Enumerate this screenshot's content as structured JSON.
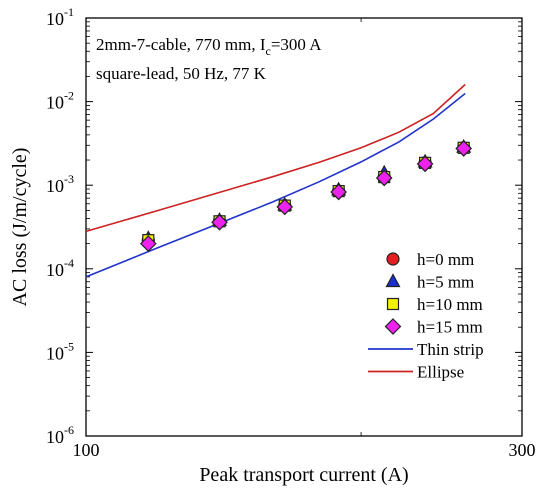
{
  "chart_data": {
    "type": "scatter",
    "annotation_line1": "2mm-7-cable, 770 mm, I",
    "annotation_line1_sub": "c",
    "annotation_line1_tail": "=300 A",
    "annotation_line2": "square-lead, 50 Hz, 77 K",
    "xlabel": "Peak transport current (A)",
    "ylabel": "AC loss (J/m/cycle)",
    "x_scale": "log",
    "y_scale": "log",
    "xlim": [
      100,
      300
    ],
    "ylim": [
      1e-06,
      0.1
    ],
    "x_ticks": [
      {
        "value": 100,
        "label": "100"
      },
      {
        "value": 300,
        "label": "300"
      }
    ],
    "y_ticks": [
      {
        "value": 1e-06,
        "base": "10",
        "exp": "-6"
      },
      {
        "value": 1e-05,
        "base": "10",
        "exp": "-5"
      },
      {
        "value": 0.0001,
        "base": "10",
        "exp": "-4"
      },
      {
        "value": 0.001,
        "base": "10",
        "exp": "-3"
      },
      {
        "value": 0.01,
        "base": "10",
        "exp": "-2"
      },
      {
        "value": 0.1,
        "base": "10",
        "exp": "-1"
      }
    ],
    "legend_position": "bottom-right",
    "series": [
      {
        "name": "h=0 mm",
        "kind": "marker",
        "marker": "circle",
        "color": "#e02020",
        "x": [
          117,
          140,
          165,
          189,
          212,
          235,
          259
        ],
        "y": [
          0.00022,
          0.00037,
          0.00057,
          0.00085,
          0.00125,
          0.00185,
          0.0028
        ]
      },
      {
        "name": "h=5 mm",
        "kind": "marker",
        "marker": "triangle",
        "color": "#1a2fd0",
        "x": [
          117,
          140,
          165,
          189,
          212,
          235,
          259
        ],
        "y": [
          0.00023,
          0.00038,
          0.00058,
          0.00088,
          0.0014,
          0.0019,
          0.00285
        ]
      },
      {
        "name": "h=10 mm",
        "kind": "marker",
        "marker": "square",
        "color": "#f2f000",
        "x": [
          117,
          140,
          165,
          189,
          212,
          235,
          259
        ],
        "y": [
          0.00022,
          0.00037,
          0.00057,
          0.00085,
          0.00125,
          0.00185,
          0.0028
        ]
      },
      {
        "name": "h=15 mm",
        "kind": "marker",
        "marker": "diamond",
        "color": "#ee22ee",
        "x": [
          117,
          140,
          165,
          189,
          212,
          235,
          259
        ],
        "y": [
          0.0002,
          0.00036,
          0.00055,
          0.00083,
          0.00122,
          0.0018,
          0.00275
        ]
      },
      {
        "name": "Thin strip",
        "kind": "line",
        "color": "#2233cc",
        "x": [
          100,
          120,
          140,
          160,
          180,
          200,
          220,
          240,
          260
        ],
        "y": [
          8e-05,
          0.00018,
          0.00035,
          0.00063,
          0.0011,
          0.0019,
          0.0033,
          0.0062,
          0.0125
        ]
      },
      {
        "name": "Ellipse",
        "kind": "line",
        "color": "#cc2222",
        "x": [
          100,
          120,
          140,
          160,
          180,
          200,
          220,
          240,
          260
        ],
        "y": [
          0.00028,
          0.0005,
          0.00082,
          0.00126,
          0.00188,
          0.0028,
          0.0043,
          0.0072,
          0.016
        ]
      }
    ]
  }
}
